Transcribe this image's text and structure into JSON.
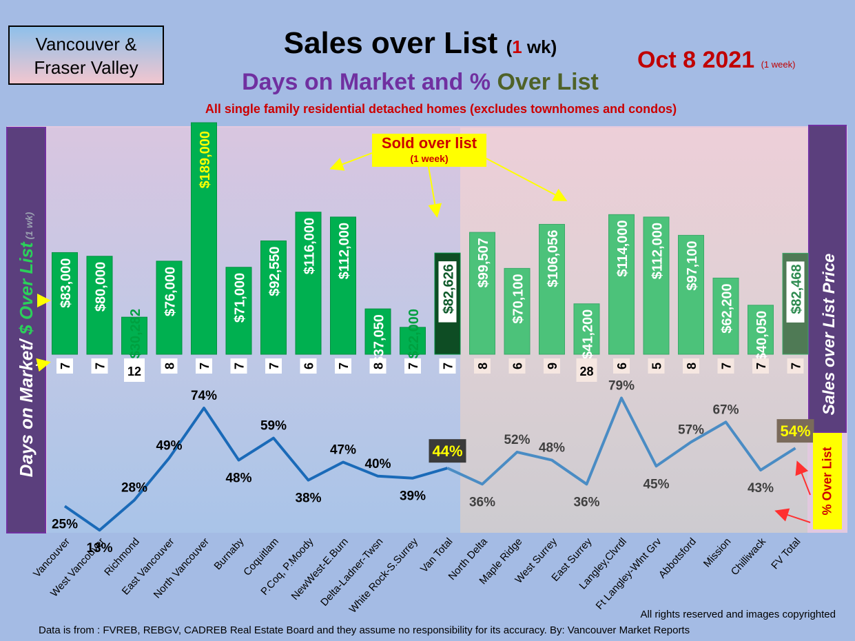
{
  "header": {
    "logo_line1": "Vancouver &",
    "logo_line2": "Fraser Valley",
    "title_main": "Sales over List",
    "title_paren_open": "(",
    "title_paren_num": "1",
    "title_paren_close": " wk)",
    "subtitle_part1": "Days on Market and % ",
    "subtitle_part2": "Over List",
    "description": "All single family residential detached homes (excludes townhomes and condos)",
    "date": "Oct 8  2021",
    "date_note": "(1 week)"
  },
  "annotation": {
    "sold_over_list": "Sold over list",
    "sold_over_list_note": "(1 week)",
    "pct_over_list": "% Over List"
  },
  "colors": {
    "van_bar": "#00b050",
    "fv_bar": "#4cc27a",
    "van_total_bar": "#0e4d24",
    "fv_total_bar": "#4f7a55",
    "van_line": "#1a6ab8",
    "fv_line": "#4a8cc4",
    "left_panel": "#5b3f7d",
    "pct_label_yellow": "#ffff00"
  },
  "chart_data": {
    "type": "bar+line",
    "title": "Sales over List (1 wk)",
    "subtitle": "Days on Market and % Over List",
    "left_axis_label_part1": "Days on Market/ ",
    "left_axis_label_part2": "$ Over List",
    "left_axis_label_note": " (1 wk)",
    "right_axis_label": "Sales over List Price",
    "categories": [
      "Vancouver",
      "West Vancouver",
      "Richmond",
      "East Vancouver",
      "North Vancouver",
      "Burnaby",
      "Coquitlam",
      "P.Coq, P.Moody",
      "NewWest-E.Burn",
      "Delta-Ladner-Twsn",
      "White Rock-S.Surrey",
      "Van Total",
      "North Delta",
      "Maple Ridge",
      "West Surrey",
      "East Surrey",
      "Langley,Clvrdl",
      "Ft Langley-Wlnt Grv",
      "Abbotsford",
      "Mission",
      "Chilliwack",
      "FV Total"
    ],
    "series": [
      {
        "name": "$ Over List",
        "type": "bar",
        "values": [
          83000,
          80000,
          30282,
          76000,
          189000,
          71000,
          92550,
          116000,
          112000,
          37050,
          22000,
          82626,
          99507,
          70100,
          106056,
          41200,
          114000,
          112000,
          97100,
          62200,
          40050,
          82468
        ],
        "labels": [
          "$83,000",
          "$80,000",
          "$30,282",
          "$76,000",
          "$189,000",
          "$71,000",
          "$92,550",
          "$116,000",
          "$112,000",
          "$37,050",
          "$22,000",
          "$82,626",
          "$99,507",
          "$70,100",
          "$106,056",
          "$41,200",
          "$114,000",
          "$112,000",
          "$97,100",
          "$62,200",
          "$40,050",
          "$82,468"
        ]
      },
      {
        "name": "Days on Market",
        "type": "label",
        "values": [
          7,
          7,
          12,
          8,
          7,
          7,
          7,
          6,
          7,
          8,
          7,
          7,
          8,
          6,
          9,
          28,
          6,
          5,
          8,
          7,
          7,
          7
        ],
        "labels": [
          "7",
          "7",
          "12",
          "8",
          "7",
          "7",
          "7",
          "6",
          "7",
          "8",
          "7",
          "7",
          "8",
          "6",
          "9",
          "28",
          "6",
          "5",
          "8",
          "7",
          "7",
          "7"
        ]
      },
      {
        "name": "% Over List",
        "type": "line",
        "values": [
          25,
          13,
          28,
          49,
          74,
          48,
          59,
          38,
          47,
          40,
          39,
          44,
          36,
          52,
          48,
          36,
          79,
          45,
          57,
          67,
          43,
          54
        ],
        "labels": [
          "25%",
          "13%",
          "28%",
          "49%",
          "74%",
          "48%",
          "59%",
          "38%",
          "47%",
          "40%",
          "39%",
          "44%",
          "36%",
          "52%",
          "48%",
          "36%",
          "79%",
          "45%",
          "57%",
          "67%",
          "43%",
          "54%"
        ]
      }
    ]
  },
  "footer": {
    "copyright": "All rights reserved and  images copyrighted",
    "source": "Data is from : FVREB, REBGV, CADREB Real Estate Board and they assume no responsibility for its accuracy. By: Vancouver Market Reports"
  }
}
